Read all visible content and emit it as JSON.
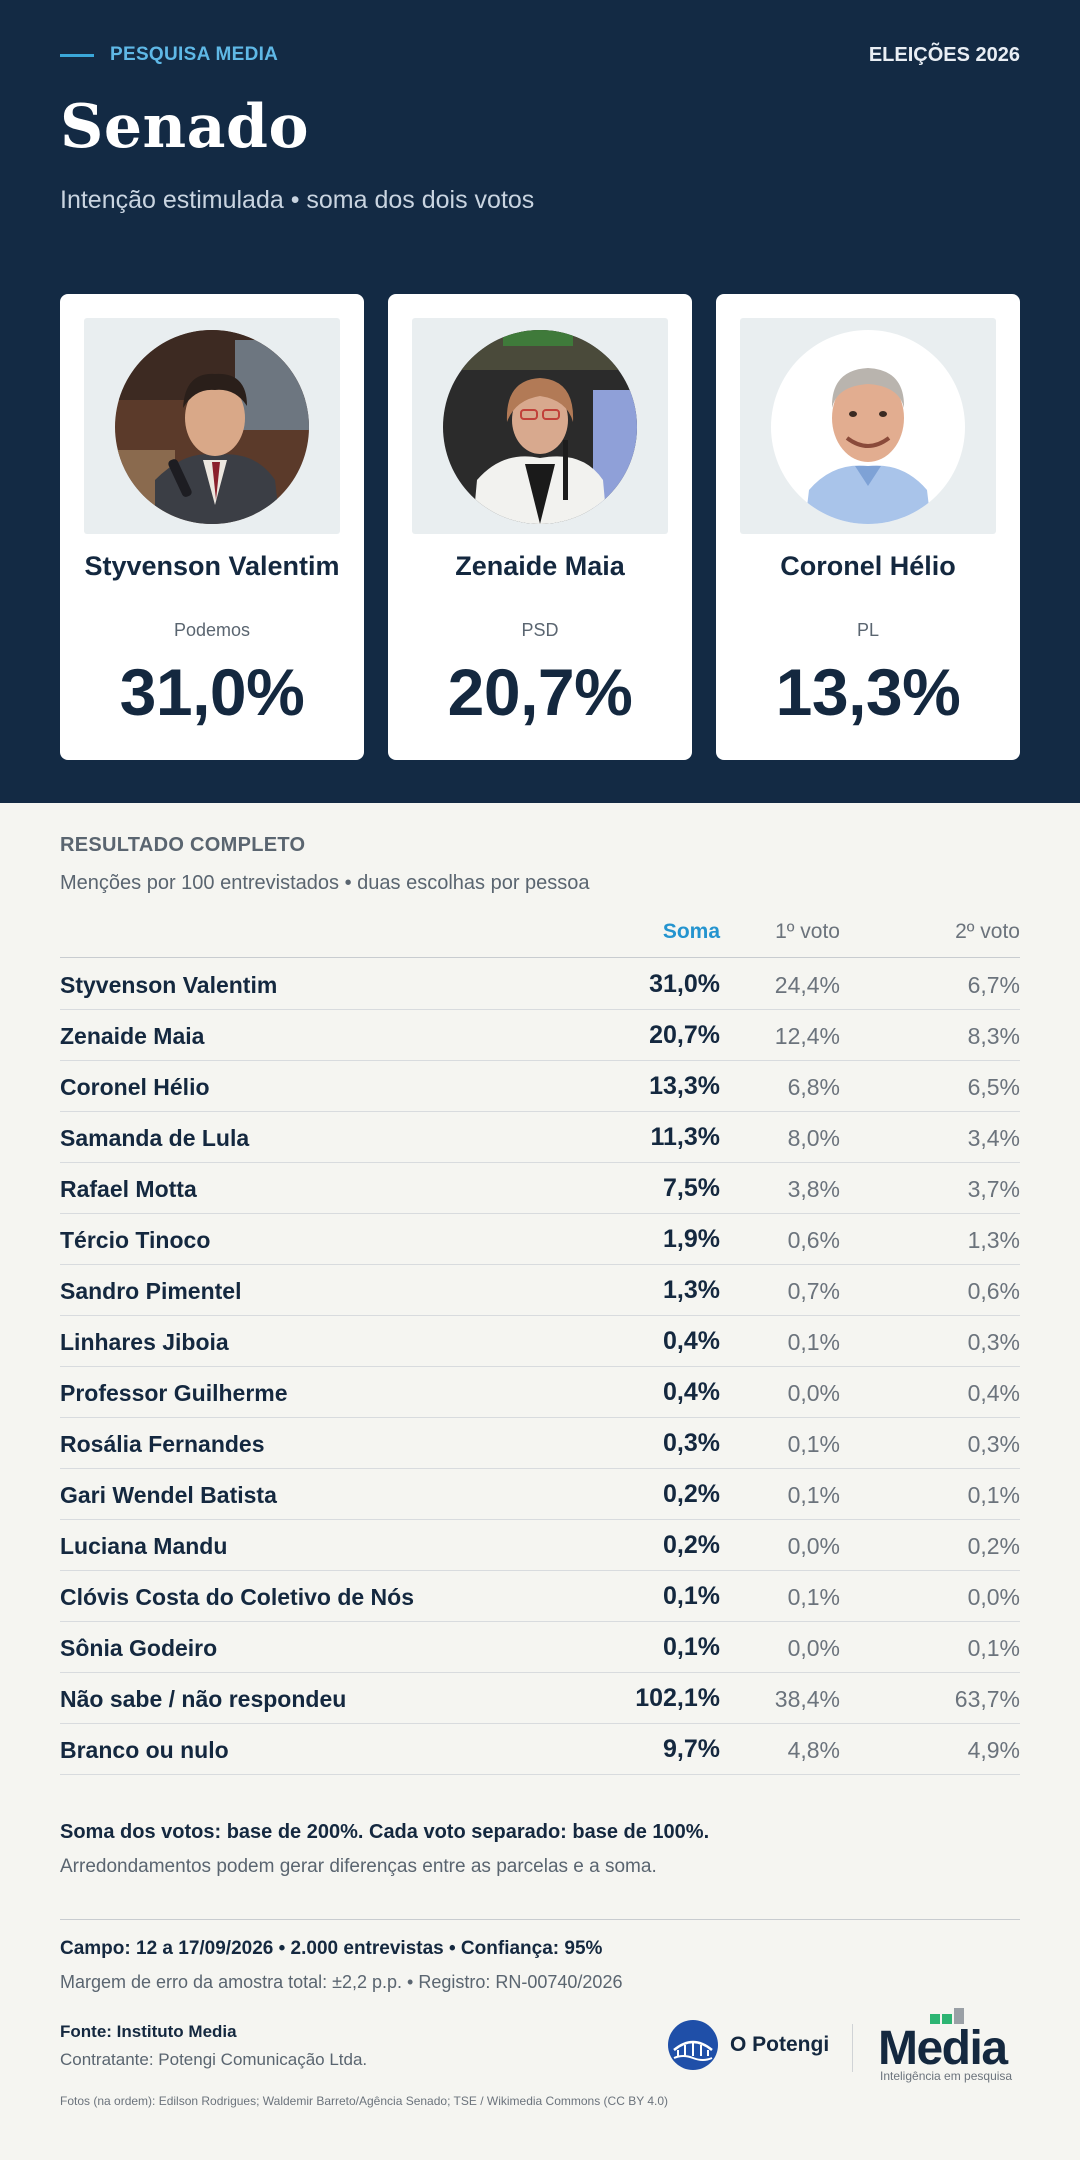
{
  "header": {
    "kicker": "PESQUISA MEDIA",
    "election": "ELEIÇÕES 2026",
    "title": "Senado",
    "subtitle": "Intenção estimulada • soma dos dois votos"
  },
  "cards": [
    {
      "name": "Styvenson Valentim",
      "party": "Podemos",
      "pct": "31,0%"
    },
    {
      "name": "Zenaide Maia",
      "party": "PSD",
      "pct": "20,7%"
    },
    {
      "name": "Coronel Hélio",
      "party": "PL",
      "pct": "13,3%"
    }
  ],
  "results": {
    "title": "RESULTADO COMPLETO",
    "subtitle": "Menções por 100 entrevistados • duas escolhas por pessoa",
    "columns": {
      "soma": "Soma",
      "v1": "1º voto",
      "v2": "2º voto"
    },
    "rows": [
      {
        "name": "Styvenson Valentim",
        "soma": "31,0%",
        "v1": "24,4%",
        "v2": "6,7%"
      },
      {
        "name": "Zenaide Maia",
        "soma": "20,7%",
        "v1": "12,4%",
        "v2": "8,3%"
      },
      {
        "name": "Coronel Hélio",
        "soma": "13,3%",
        "v1": "6,8%",
        "v2": "6,5%"
      },
      {
        "name": "Samanda de Lula",
        "soma": "11,3%",
        "v1": "8,0%",
        "v2": "3,4%"
      },
      {
        "name": "Rafael Motta",
        "soma": "7,5%",
        "v1": "3,8%",
        "v2": "3,7%"
      },
      {
        "name": "Tércio Tinoco",
        "soma": "1,9%",
        "v1": "0,6%",
        "v2": "1,3%"
      },
      {
        "name": "Sandro Pimentel",
        "soma": "1,3%",
        "v1": "0,7%",
        "v2": "0,6%"
      },
      {
        "name": "Linhares Jiboia",
        "soma": "0,4%",
        "v1": "0,1%",
        "v2": "0,3%"
      },
      {
        "name": "Professor Guilherme",
        "soma": "0,4%",
        "v1": "0,0%",
        "v2": "0,4%"
      },
      {
        "name": "Rosália Fernandes",
        "soma": "0,3%",
        "v1": "0,1%",
        "v2": "0,3%"
      },
      {
        "name": "Gari Wendel Batista",
        "soma": "0,2%",
        "v1": "0,1%",
        "v2": "0,1%"
      },
      {
        "name": "Luciana Mandu",
        "soma": "0,2%",
        "v1": "0,0%",
        "v2": "0,2%"
      },
      {
        "name": "Clóvis Costa do Coletivo de Nós",
        "soma": "0,1%",
        "v1": "0,1%",
        "v2": "0,0%"
      },
      {
        "name": "Sônia Godeiro",
        "soma": "0,1%",
        "v1": "0,0%",
        "v2": "0,1%"
      },
      {
        "name": "Não sabe / não respondeu",
        "soma": "102,1%",
        "v1": "38,4%",
        "v2": "63,7%"
      },
      {
        "name": "Branco ou nulo",
        "soma": "9,7%",
        "v1": "4,8%",
        "v2": "4,9%"
      }
    ]
  },
  "notes": {
    "base": "Soma dos votos: base de 200%. Cada voto separado: base de 100%.",
    "rounding": "Arredondamentos podem gerar diferenças entre as parcelas e a soma."
  },
  "footer": {
    "field": "Campo: 12 a 17/09/2026 • 2.000 entrevistas • Confiança: 95%",
    "margin": "Margem de erro da amostra total: ±2,2 p.p. • Registro: RN-00740/2026",
    "source": "Fonte: Instituto Media",
    "contractor": "Contratante: Potengi Comunicação Ltda.",
    "photos": "Fotos (na ordem): Edilson Rodrigues; Waldemir Barreto/Agência Senado; TSE / Wikimedia Commons (CC BY 4.0)",
    "potengi_name": "O Potengi",
    "media_word": "Media",
    "media_tagline": "Inteligência em pesquisa"
  },
  "colors": {
    "navy": "#132a44",
    "accent_blue": "#2494cf",
    "media_green": "#2db573"
  }
}
